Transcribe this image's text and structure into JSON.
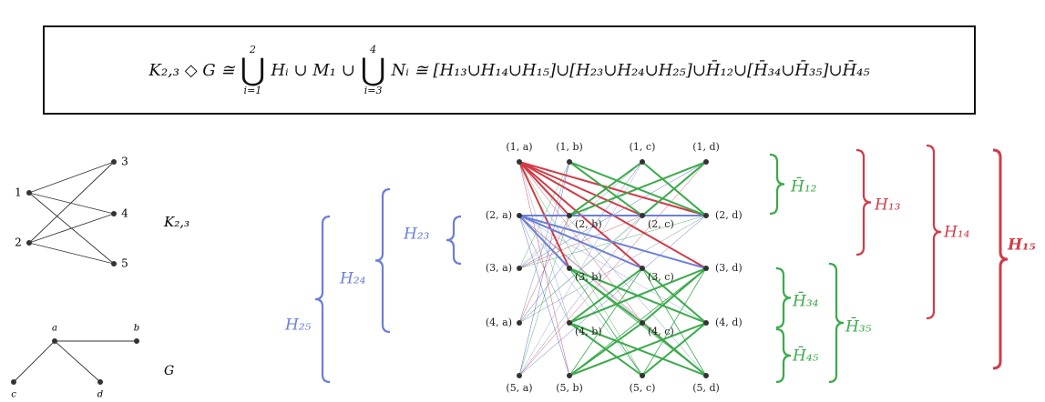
{
  "formula": {
    "lhs": "K₂,₃ ◇ G ≅",
    "union1": {
      "symbol": "⋃",
      "upper": "2",
      "lower": "i=1"
    },
    "mid": "Hᵢ ∪ M₁ ∪",
    "union2": {
      "symbol": "⋃",
      "upper": "4",
      "lower": "i=3"
    },
    "rhs": "Nᵢ ≅ [H₁₃∪H₁₄∪H₁₅]∪[H₂₃∪H₂₄∪H₂₅]∪H̄₁₂∪[H̄₃₄∪H̄₃₅]∪H̄₄₅"
  },
  "k23": {
    "nodes": [
      "1",
      "2",
      "3",
      "4",
      "5"
    ],
    "label": "K₂,₃"
  },
  "g": {
    "nodes": [
      "a",
      "b",
      "c",
      "d"
    ],
    "label": "G"
  },
  "product": {
    "nodes": [
      "(1, a)",
      "(1, b)",
      "(1, c)",
      "(1, d)",
      "(2, a)",
      "(2, b)",
      "(2, c)",
      "(2, d)",
      "(3, a)",
      "(3, b)",
      "(3, c)",
      "(3, d)",
      "(4, a)",
      "(4, b)",
      "(4, c)",
      "(4, d)",
      "(5, a)",
      "(5, b)",
      "(5, c)",
      "(5, d)"
    ]
  },
  "braces": {
    "h12": "H̄₁₂",
    "h13": "H₁₃",
    "h14": "H₁₄",
    "h15": "H₁₅",
    "h23": "H₂₃",
    "h24": "H₂₄",
    "h25": "H₂₅",
    "h34": "H̄₃₄",
    "h35": "H̄₃₅",
    "h45": "H̄₄₅"
  }
}
